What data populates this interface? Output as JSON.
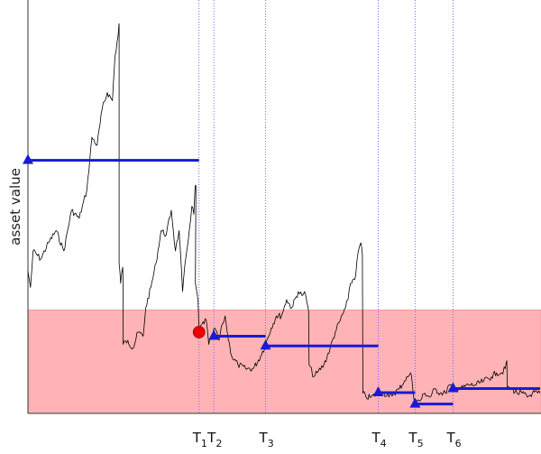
{
  "chart_data": {
    "type": "line",
    "title": "",
    "xlabel": "",
    "ylabel": "asset value",
    "xlim": [
      0,
      100
    ],
    "ylim": [
      0,
      100
    ],
    "grid": false,
    "legend": "none",
    "colors": {
      "path": "#000000",
      "level": "#1a1ad6",
      "band": "#ffb3b6",
      "marker": "#ee0000",
      "vline": "#6e6ef0"
    },
    "band": {
      "y0": 0,
      "y1": 25.5
    },
    "times": [
      {
        "label": "T",
        "sub": "1",
        "x": 33.4
      },
      {
        "label": "T",
        "sub": "2",
        "x": 36.3
      },
      {
        "label": "T",
        "sub": "3",
        "x": 46.4
      },
      {
        "label": "T",
        "sub": "4",
        "x": 68.4
      },
      {
        "label": "T",
        "sub": "5",
        "x": 75.6
      },
      {
        "label": "T",
        "sub": "6",
        "x": 83.0
      }
    ],
    "segments": [
      {
        "x": [
          0.0,
          0.5,
          1.0,
          2.5,
          4.0,
          5.5,
          7.0,
          8.5,
          10.0,
          11.5,
          12.5,
          13.5,
          14.5,
          15.5,
          16.5,
          17.0,
          17.6,
          17.8
        ],
        "y": [
          35,
          31,
          40,
          38,
          42,
          45,
          40,
          50,
          48,
          55,
          68,
          66,
          75,
          79,
          77,
          88,
          93,
          96
        ]
      },
      {
        "x": [
          17.8,
          17.8,
          18.1,
          18.5,
          18.6,
          18.6,
          19.5,
          20.5,
          21.5,
          22.5,
          23.0,
          24.0,
          25.0,
          26.0,
          27.0,
          28.0,
          28.8,
          29.5,
          30.2,
          30.8,
          31.5,
          32.0,
          32.4,
          32.6,
          32.8,
          32.7,
          33.2,
          33.4
        ],
        "y": [
          96,
          37,
          32,
          36,
          32,
          17,
          18,
          16,
          20,
          19,
          26,
          31,
          37,
          45,
          44,
          50,
          40,
          45,
          30,
          38,
          45,
          51,
          49,
          55,
          56,
          32,
          28,
          20
        ]
      },
      {
        "x": [
          33.4,
          34.0,
          34.8,
          35.3,
          36.0,
          36.5,
          37.3,
          38.0,
          38.5,
          38.9,
          39.8,
          41.0,
          42.5,
          44.0,
          45.4,
          46.4,
          47.5,
          48.5,
          49.5,
          50.5,
          51.5,
          52.8,
          53.5,
          54.0,
          54.5,
          54.8,
          54.9,
          55.8,
          56.5,
          57.8,
          59.0,
          60.0,
          61.0,
          62.0,
          62.5,
          63.0,
          64.0,
          64.5,
          65.0,
          65.3,
          65.4,
          66.0,
          67.0,
          68.4
        ],
        "y": [
          20,
          22,
          23,
          17,
          19,
          21,
          18,
          22,
          24,
          20,
          14,
          12,
          11,
          11,
          14,
          17,
          21,
          24,
          24,
          28,
          26,
          30,
          29,
          30,
          27,
          25,
          12,
          9,
          10,
          12,
          16,
          20,
          23,
          26,
          28,
          32,
          34,
          40,
          42,
          39,
          5,
          4,
          4,
          5
        ]
      },
      {
        "x": [
          68.4,
          69.5,
          70.5,
          71.5,
          72.5,
          73.5,
          74.2,
          74.7,
          75.0,
          75.3,
          75.6
        ],
        "y": [
          5,
          5,
          4,
          5,
          6,
          8,
          9,
          10,
          8,
          4,
          3
        ]
      },
      {
        "x": [
          75.6,
          76.5,
          77.5,
          78.5,
          79.5,
          80.5,
          81.5,
          82.3,
          83.0,
          84.5,
          86.0,
          87.5,
          89.0,
          90.5,
          91.5,
          92.5,
          93.2,
          93.5,
          93.6,
          94.5,
          95.5,
          96.5,
          97.5,
          98.5,
          99.5,
          100.0
        ],
        "y": [
          3,
          3,
          5,
          4,
          6,
          5,
          5,
          7,
          6,
          6,
          7,
          7,
          8,
          9,
          10,
          10,
          11,
          13,
          6,
          6,
          5,
          5,
          4,
          5,
          5,
          5
        ]
      }
    ],
    "levels": [
      {
        "x_start": 0.0,
        "x_end": 33.4,
        "y": 62.3
      },
      {
        "x_start": 36.3,
        "x_end": 46.4,
        "y": 19.0
      },
      {
        "x_start": 46.4,
        "x_end": 68.4,
        "y": 16.6
      },
      {
        "x_start": 68.4,
        "x_end": 75.6,
        "y": 5.1
      },
      {
        "x_start": 75.6,
        "x_end": 83.0,
        "y": 2.3
      },
      {
        "x_start": 83.0,
        "x_end": 100.0,
        "y": 6.1
      }
    ],
    "triangles": [
      {
        "x": 0.0,
        "y": 62.3
      },
      {
        "x": 36.3,
        "y": 19.0
      },
      {
        "x": 46.4,
        "y": 16.6
      },
      {
        "x": 68.4,
        "y": 5.1
      },
      {
        "x": 75.6,
        "y": 2.3
      },
      {
        "x": 83.0,
        "y": 6.1
      }
    ],
    "marker": {
      "x": 33.4,
      "y": 20.0
    }
  }
}
